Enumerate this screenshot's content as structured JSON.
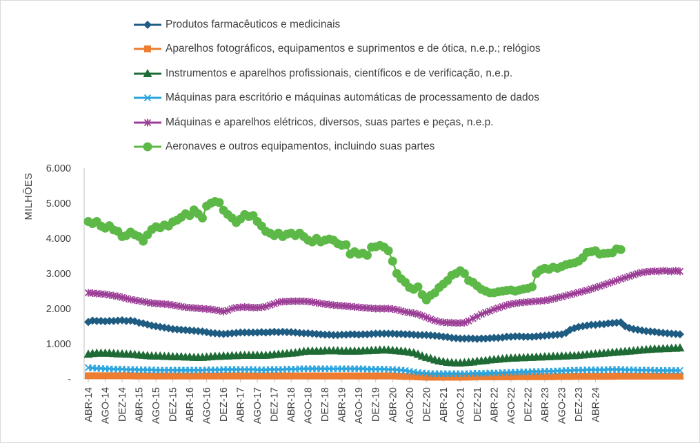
{
  "chart_data": {
    "type": "line",
    "ylabel": "MILHÕES",
    "ylim": [
      0,
      6000
    ],
    "y_ticks": [
      "-",
      "1.000",
      "2.000",
      "3.000",
      "4.000",
      "5.000",
      "6.000"
    ],
    "grid": false,
    "legend_position": "top",
    "x_tick_labels": [
      "ABR-14",
      "AGO-14",
      "DEZ-14",
      "ABR-15",
      "AGO-15",
      "DEZ-15",
      "ABR-16",
      "AGO-16",
      "DEZ-16",
      "ABR-17",
      "AGO-17",
      "DEZ-17",
      "ABR-18",
      "AGO-18",
      "DEZ-18",
      "ABR-19",
      "AGO-19",
      "DEZ-19",
      "ABR-20",
      "AGO-20",
      "DEZ-20",
      "ABR-21",
      "AGO-21",
      "DEZ-21",
      "ABR-22",
      "AGO-22",
      "DEZ-22",
      "ABR-23",
      "AGO-23",
      "DEZ-23",
      "ABR-24"
    ],
    "x_start": "2014-04",
    "x_end": "2024-04",
    "series": [
      {
        "name": "Produtos farmacêuticos e medicinais",
        "color": "#1f5c82",
        "marker": "diamond",
        "values": [
          1620,
          1660,
          1650,
          1650,
          1640,
          1650,
          1650,
          1660,
          1670,
          1650,
          1660,
          1640,
          1600,
          1580,
          1550,
          1520,
          1500,
          1480,
          1460,
          1440,
          1420,
          1410,
          1400,
          1390,
          1380,
          1370,
          1360,
          1350,
          1330,
          1310,
          1300,
          1290,
          1280,
          1290,
          1300,
          1310,
          1320,
          1320,
          1320,
          1320,
          1320,
          1330,
          1320,
          1330,
          1340,
          1330,
          1340,
          1330,
          1330,
          1320,
          1310,
          1300,
          1300,
          1290,
          1280,
          1270,
          1260,
          1260,
          1250,
          1250,
          1260,
          1260,
          1270,
          1270,
          1260,
          1270,
          1270,
          1280,
          1290,
          1290,
          1290,
          1290,
          1290,
          1280,
          1280,
          1270,
          1270,
          1260,
          1250,
          1250,
          1250,
          1240,
          1230,
          1220,
          1200,
          1190,
          1170,
          1160,
          1150,
          1150,
          1150,
          1150,
          1140,
          1150,
          1150,
          1160,
          1170,
          1170,
          1180,
          1200,
          1200,
          1210,
          1210,
          1200,
          1200,
          1200,
          1210,
          1220,
          1230,
          1240,
          1250,
          1260,
          1270,
          1310,
          1400,
          1440,
          1480,
          1500,
          1520,
          1540,
          1540,
          1560,
          1560,
          1580,
          1590,
          1600,
          1610,
          1500,
          1450,
          1420,
          1400,
          1380,
          1360,
          1350,
          1340,
          1320,
          1310,
          1300,
          1290,
          1280,
          1270
        ]
      },
      {
        "name": "Aparelhos fotográficos, equipamentos e suprimentos e de ótica, n.e.p.; relógios",
        "color": "#ed7d31",
        "marker": "square",
        "values": [
          90,
          90,
          90,
          90,
          90,
          90,
          90,
          90,
          90,
          90,
          90,
          85,
          85,
          85,
          85,
          85,
          85,
          85,
          85,
          85,
          85,
          85,
          85,
          85,
          85,
          85,
          85,
          85,
          85,
          85,
          85,
          85,
          85,
          85,
          85,
          85,
          85,
          85,
          85,
          85,
          85,
          85,
          85,
          85,
          85,
          85,
          85,
          85,
          85,
          85,
          85,
          85,
          85,
          85,
          85,
          85,
          85,
          85,
          85,
          85,
          85,
          85,
          85,
          85,
          85,
          85,
          85,
          85,
          85,
          85,
          85,
          85,
          85,
          80,
          75,
          70,
          70,
          65,
          60,
          55,
          50,
          50,
          50,
          50,
          50,
          50,
          50,
          50,
          50,
          50,
          55,
          55,
          60,
          60,
          60,
          60,
          60,
          60,
          60,
          60,
          60,
          65,
          65,
          65,
          65,
          65,
          65,
          65,
          65,
          65,
          65,
          70,
          70,
          70,
          70,
          75,
          75,
          75,
          75,
          75,
          75,
          75,
          75,
          75,
          75,
          80,
          80,
          80,
          80,
          80,
          80,
          80,
          80,
          80,
          80,
          80,
          80,
          80,
          80,
          80,
          80
        ]
      },
      {
        "name": "Instrumentos e aparelhos profissionais, científicos e de verificação, n.e.p.",
        "color": "#1e6b35",
        "marker": "triangle",
        "values": [
          700,
          720,
          730,
          730,
          730,
          730,
          720,
          710,
          710,
          700,
          700,
          690,
          680,
          670,
          660,
          650,
          650,
          650,
          640,
          640,
          630,
          630,
          630,
          620,
          620,
          610,
          610,
          610,
          620,
          630,
          640,
          640,
          650,
          650,
          660,
          660,
          670,
          670,
          670,
          670,
          670,
          670,
          670,
          680,
          690,
          700,
          710,
          720,
          730,
          740,
          760,
          780,
          790,
          790,
          790,
          790,
          800,
          800,
          800,
          800,
          790,
          790,
          790,
          790,
          790,
          800,
          800,
          810,
          810,
          820,
          820,
          820,
          810,
          800,
          790,
          780,
          760,
          740,
          700,
          650,
          610,
          580,
          540,
          510,
          490,
          470,
          460,
          450,
          450,
          460,
          470,
          480,
          500,
          510,
          520,
          540,
          550,
          560,
          570,
          580,
          590,
          590,
          600,
          600,
          610,
          610,
          620,
          620,
          630,
          630,
          640,
          640,
          650,
          650,
          660,
          660,
          670,
          680,
          690,
          700,
          710,
          720,
          730,
          740,
          750,
          760,
          770,
          780,
          790,
          800,
          810,
          820,
          830,
          840,
          850,
          850,
          860,
          860,
          870,
          870,
          880
        ]
      },
      {
        "name": "Máquinas para escritório e máquinas automáticas de processamento de dados",
        "color": "#29a3dc",
        "marker": "x",
        "values": [
          320,
          310,
          300,
          300,
          290,
          290,
          280,
          280,
          280,
          270,
          270,
          270,
          260,
          260,
          260,
          260,
          250,
          250,
          250,
          250,
          250,
          250,
          250,
          250,
          250,
          250,
          250,
          250,
          260,
          260,
          260,
          260,
          270,
          270,
          270,
          270,
          270,
          270,
          270,
          270,
          260,
          260,
          260,
          270,
          270,
          270,
          270,
          280,
          280,
          280,
          290,
          290,
          290,
          290,
          290,
          290,
          290,
          290,
          290,
          290,
          290,
          290,
          290,
          290,
          290,
          290,
          280,
          280,
          280,
          280,
          280,
          270,
          270,
          260,
          250,
          240,
          220,
          200,
          180,
          170,
          160,
          150,
          150,
          150,
          150,
          150,
          150,
          150,
          150,
          150,
          150,
          160,
          160,
          160,
          160,
          170,
          170,
          170,
          180,
          180,
          190,
          190,
          200,
          200,
          200,
          210,
          210,
          210,
          220,
          220,
          220,
          230,
          230,
          240,
          240,
          250,
          250,
          250,
          260,
          260,
          260,
          260,
          260,
          270,
          270,
          270,
          270,
          260,
          260,
          260,
          250,
          250,
          250,
          250,
          240,
          240,
          240,
          240,
          240,
          240,
          240
        ]
      },
      {
        "name": "Máquinas e aparelhos elétricos, diversos, suas partes e peças, n.e.p.",
        "color": "#9b3d96",
        "marker": "asterisk",
        "values": [
          2450,
          2440,
          2430,
          2420,
          2410,
          2390,
          2370,
          2350,
          2320,
          2290,
          2260,
          2240,
          2220,
          2200,
          2180,
          2160,
          2150,
          2140,
          2130,
          2120,
          2100,
          2080,
          2060,
          2040,
          2030,
          2020,
          2010,
          2000,
          1990,
          1980,
          1960,
          1940,
          1920,
          1950,
          2000,
          2030,
          2040,
          2050,
          2040,
          2030,
          2030,
          2040,
          2060,
          2100,
          2140,
          2180,
          2200,
          2200,
          2210,
          2210,
          2210,
          2210,
          2200,
          2190,
          2170,
          2150,
          2130,
          2120,
          2100,
          2090,
          2080,
          2070,
          2060,
          2050,
          2040,
          2030,
          2020,
          2010,
          2000,
          2000,
          2000,
          2000,
          1990,
          1970,
          1940,
          1910,
          1890,
          1870,
          1840,
          1800,
          1750,
          1700,
          1660,
          1630,
          1610,
          1600,
          1600,
          1590,
          1590,
          1600,
          1650,
          1720,
          1780,
          1840,
          1890,
          1930,
          1980,
          2020,
          2060,
          2100,
          2130,
          2150,
          2170,
          2180,
          2190,
          2200,
          2210,
          2220,
          2230,
          2250,
          2280,
          2310,
          2340,
          2370,
          2400,
          2430,
          2460,
          2490,
          2520,
          2560,
          2600,
          2640,
          2680,
          2720,
          2760,
          2800,
          2840,
          2880,
          2920,
          2960,
          3000,
          3030,
          3050,
          3060,
          3070,
          3060,
          3080,
          3070,
          3060,
          3080,
          3060
        ]
      },
      {
        "name": "Aeronaves e outros equipamentos, incluindo suas partes",
        "color": "#5cb947",
        "marker": "circle",
        "values": [
          4480,
          4420,
          4480,
          4350,
          4290,
          4360,
          4240,
          4200,
          4050,
          4080,
          4180,
          4100,
          4050,
          3920,
          4100,
          4250,
          4330,
          4300,
          4380,
          4350,
          4470,
          4520,
          4600,
          4700,
          4650,
          4810,
          4700,
          4580,
          4920,
          5000,
          5050,
          5020,
          4800,
          4680,
          4580,
          4450,
          4550,
          4680,
          4620,
          4650,
          4480,
          4350,
          4200,
          4150,
          4080,
          4150,
          4050,
          4120,
          4150,
          4080,
          4150,
          4050,
          3950,
          3900,
          4000,
          3900,
          3950,
          3980,
          3950,
          3850,
          3800,
          3820,
          3550,
          3620,
          3550,
          3580,
          3520,
          3750,
          3760,
          3800,
          3750,
          3650,
          3350,
          3000,
          2850,
          2750,
          2600,
          2550,
          2620,
          2400,
          2250,
          2380,
          2450,
          2600,
          2700,
          2800,
          2950,
          3000,
          3080,
          3000,
          2800,
          2750,
          2650,
          2550,
          2500,
          2450,
          2450,
          2480,
          2500,
          2520,
          2530,
          2500,
          2530,
          2560,
          2580,
          2620,
          3000,
          3100,
          3150,
          3120,
          3180,
          3150,
          3200,
          3250,
          3280,
          3300,
          3350,
          3450,
          3600,
          3620,
          3650,
          3550,
          3570,
          3580,
          3590,
          3700,
          3680
        ]
      }
    ]
  }
}
